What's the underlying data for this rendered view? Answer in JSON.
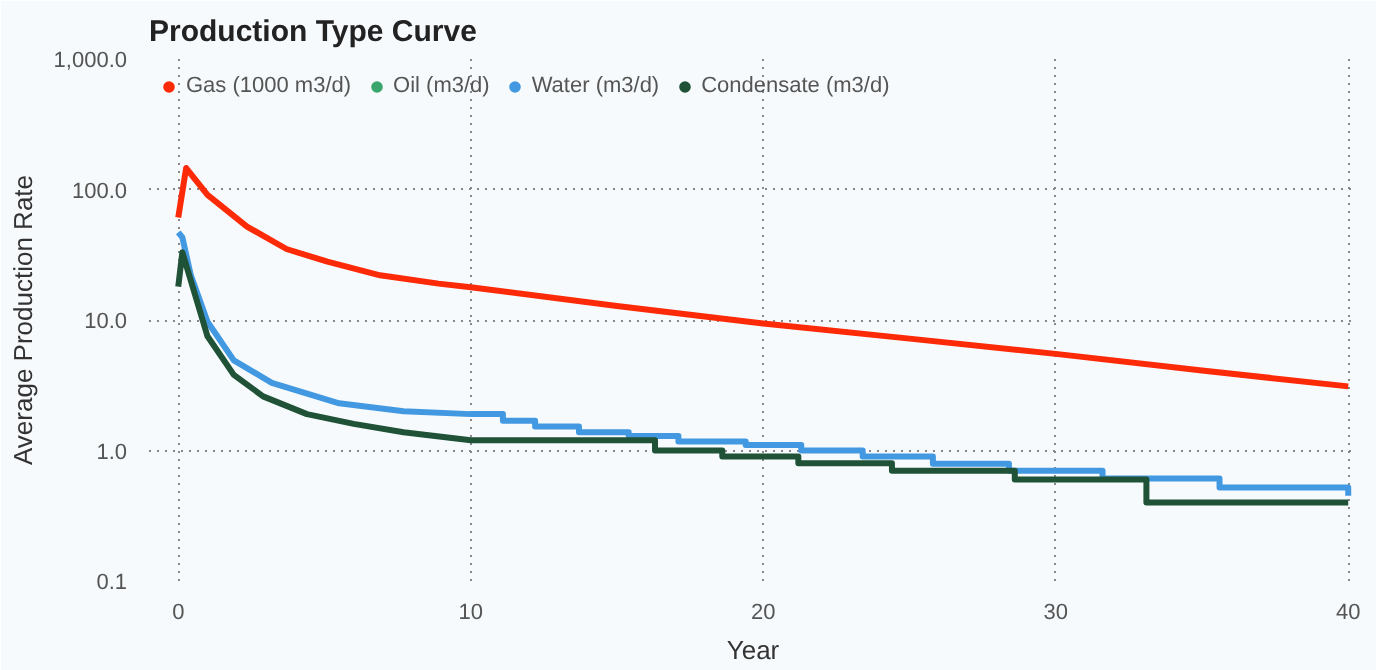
{
  "chart_data": {
    "type": "line",
    "title": "Production Type Curve",
    "xlabel": "Year",
    "ylabel": "Average Production Rate",
    "log": "y",
    "xlim": [
      -1,
      40.3
    ],
    "ylim": [
      0.1,
      1000
    ],
    "xticks": [
      0,
      10,
      20,
      30,
      40
    ],
    "yticks": [
      {
        "value": 0.1,
        "label": "0.1"
      },
      {
        "value": 1,
        "label": "1.0"
      },
      {
        "value": 10,
        "label": "10.0"
      },
      {
        "value": 100,
        "label": "100.0"
      },
      {
        "value": 1000,
        "label": "1,000.0"
      }
    ],
    "grid": true,
    "legend": "top left",
    "marker": "none",
    "line_style": "solid",
    "series": [
      {
        "name": "Gas (1000 m3/d)",
        "color": "#fd2a07",
        "x": [
          0,
          0.27,
          1.0,
          2.35,
          3.7,
          5.1,
          6.9,
          8.9,
          10,
          15,
          20,
          25,
          30,
          35,
          40
        ],
        "values": [
          61,
          146,
          91,
          52,
          35,
          28,
          22,
          19,
          17.8,
          12.8,
          9.4,
          7.2,
          5.5,
          4.1,
          3.1
        ]
      },
      {
        "name": "Oil (m3/d)",
        "color": "#3aa66e"
      },
      {
        "name": "Water (m3/d)",
        "color": "#4299e1",
        "x": [
          0,
          0.14,
          0.43,
          1.0,
          1.9,
          3.2,
          5.5,
          7.7,
          10,
          11.1,
          11.1,
          12.2,
          12.2,
          13.7,
          13.7,
          15.4,
          15.4,
          17.1,
          17.1,
          19.4,
          19.4,
          21.3,
          21.3,
          23.4,
          23.4,
          25.8,
          25.8,
          28.4,
          28.4,
          31.6,
          31.6,
          35.6,
          35.6,
          40,
          40
        ],
        "values": [
          47,
          43,
          22,
          9.7,
          4.9,
          3.3,
          2.3,
          2.0,
          1.9,
          1.9,
          1.69,
          1.69,
          1.53,
          1.53,
          1.38,
          1.38,
          1.29,
          1.29,
          1.17,
          1.17,
          1.1,
          1.1,
          1.0,
          1.0,
          0.9,
          0.9,
          0.79,
          0.79,
          0.7,
          0.7,
          0.61,
          0.61,
          0.52,
          0.52,
          0.45
        ]
      },
      {
        "name": "Condensate (m3/d)",
        "color": "#1f5236",
        "x": [
          0,
          0.14,
          0.54,
          1.0,
          1.9,
          2.9,
          4.4,
          6.0,
          7.7,
          10,
          16.3,
          16.3,
          18.6,
          18.6,
          21.2,
          21.2,
          24.4,
          24.4,
          28.6,
          28.6,
          33.1,
          33.1,
          40
        ],
        "values": [
          18,
          33,
          16.6,
          7.5,
          3.8,
          2.6,
          1.9,
          1.6,
          1.38,
          1.2,
          1.2,
          1.0,
          1.0,
          0.9,
          0.9,
          0.8,
          0.8,
          0.7,
          0.7,
          0.6,
          0.6,
          0.4,
          0.4
        ]
      }
    ]
  }
}
